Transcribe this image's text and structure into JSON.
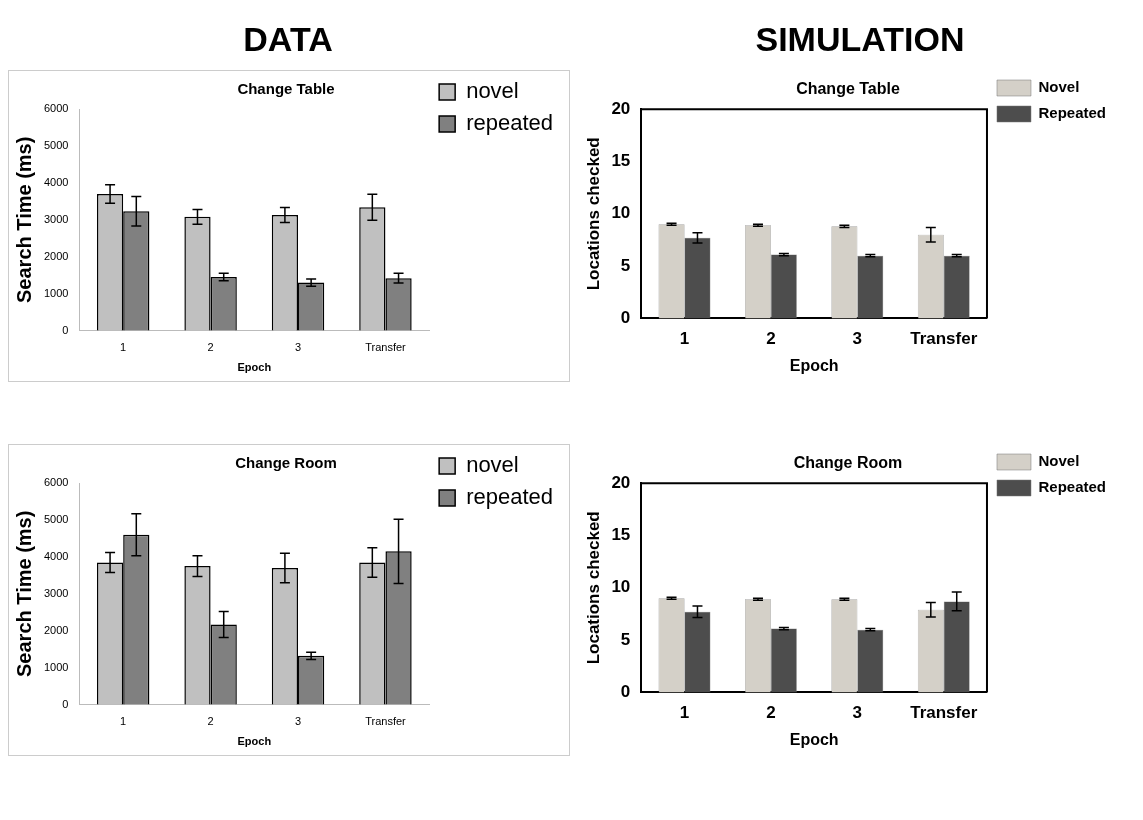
{
  "chart_data": [
    {
      "type": "bar",
      "title": "Change Table",
      "annotations": [
        "DATA"
      ],
      "xlabel": "Epoch",
      "ylabel": "Search Time (ms)",
      "categories": [
        "1",
        "2",
        "3",
        "Transfer"
      ],
      "ylim": [
        0,
        6000
      ],
      "yticks": [
        0,
        1000,
        2000,
        3000,
        4000,
        5000,
        6000
      ],
      "grid": false,
      "legend": "top right",
      "series": [
        {
          "name": "novel",
          "color": "#c0c0c0",
          "values": [
            3700,
            3080,
            3130,
            3340
          ],
          "errors": [
            250,
            200,
            200,
            350
          ]
        },
        {
          "name": "repeated",
          "color": "#808080",
          "values": [
            3230,
            1450,
            1300,
            1420
          ],
          "errors": [
            400,
            100,
            100,
            130
          ]
        }
      ]
    },
    {
      "type": "bar",
      "title": "Change Table",
      "annotations": [
        "SIMULATION"
      ],
      "xlabel": "Epoch",
      "ylabel": "Locations checked",
      "categories": [
        "1",
        "2",
        "3",
        "Transfer"
      ],
      "ylim": [
        0,
        20
      ],
      "yticks": [
        0,
        5,
        10,
        15,
        20
      ],
      "grid": false,
      "legend": "top right",
      "series": [
        {
          "name": "Novel",
          "color": "#d4d0c8",
          "values": [
            9.0,
            8.9,
            8.8,
            8.0
          ],
          "errors": [
            0.1,
            0.1,
            0.1,
            0.7
          ]
        },
        {
          "name": "Repeated",
          "color": "#4d4d4d",
          "values": [
            7.7,
            6.1,
            6.0,
            6.0
          ],
          "errors": [
            0.5,
            0.1,
            0.1,
            0.1
          ]
        }
      ]
    },
    {
      "type": "bar",
      "title": "Change Room",
      "xlabel": "Epoch",
      "ylabel": "Search Time (ms)",
      "categories": [
        "1",
        "2",
        "3",
        "Transfer"
      ],
      "ylim": [
        0,
        6000
      ],
      "yticks": [
        0,
        1000,
        2000,
        3000,
        4000,
        5000,
        6000
      ],
      "grid": false,
      "legend": "top right",
      "series": [
        {
          "name": "novel",
          "color": "#c0c0c0",
          "values": [
            3850,
            3750,
            3700,
            3850
          ],
          "errors": [
            270,
            280,
            400,
            400
          ]
        },
        {
          "name": "repeated",
          "color": "#808080",
          "values": [
            4600,
            2170,
            1320,
            4150
          ],
          "errors": [
            570,
            350,
            100,
            870
          ]
        }
      ]
    },
    {
      "type": "bar",
      "title": "Change Room",
      "xlabel": "Epoch",
      "ylabel": "Locations checked",
      "categories": [
        "1",
        "2",
        "3",
        "Transfer"
      ],
      "ylim": [
        0,
        20
      ],
      "yticks": [
        0,
        5,
        10,
        15,
        20
      ],
      "grid": false,
      "legend": "top right",
      "series": [
        {
          "name": "Novel",
          "color": "#d4d0c8",
          "values": [
            9.0,
            8.9,
            8.9,
            7.9
          ],
          "errors": [
            0.1,
            0.1,
            0.1,
            0.7
          ]
        },
        {
          "name": "Repeated",
          "color": "#4d4d4d",
          "values": [
            7.7,
            6.1,
            6.0,
            8.7
          ],
          "errors": [
            0.55,
            0.1,
            0.1,
            0.9
          ]
        }
      ]
    }
  ]
}
